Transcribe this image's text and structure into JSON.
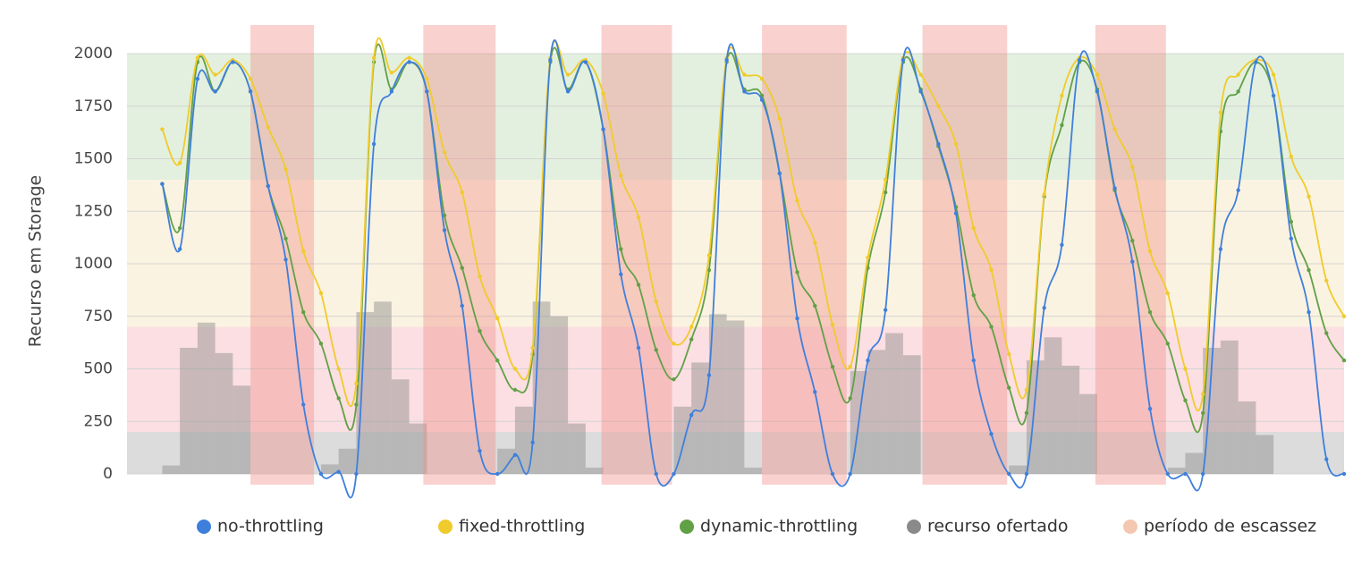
{
  "chart_data": {
    "type": "line",
    "y_label": "Recurso em Storage",
    "xlim": [
      -2,
      67
    ],
    "ylim": [
      0,
      2000
    ],
    "yticks": [
      0,
      250,
      500,
      750,
      1000,
      1250,
      1500,
      1750,
      2000
    ],
    "grid": true,
    "legend": "bottom",
    "bands": [
      {
        "from": 1400,
        "to": 2000,
        "color": "#e3f0df"
      },
      {
        "from": 700,
        "to": 1400,
        "color": "#fbf3e1"
      },
      {
        "from": 200,
        "to": 700,
        "color": "#fbdfe2"
      },
      {
        "from": 0,
        "to": 200,
        "color": "#dcdcdc"
      }
    ],
    "x": [
      0,
      1,
      2,
      3,
      4,
      5,
      6,
      7,
      8,
      9,
      10,
      11,
      12,
      13,
      14,
      15,
      16,
      17,
      18,
      19,
      20,
      21,
      22,
      23,
      24,
      25,
      26,
      27,
      28,
      29,
      30,
      31,
      32,
      33,
      34,
      35,
      36,
      37,
      38,
      39,
      40,
      41,
      42,
      43,
      44,
      45,
      46,
      47,
      48,
      49,
      50,
      51,
      52,
      53,
      54,
      55,
      56,
      57,
      58,
      59,
      60,
      61,
      62,
      63,
      64,
      65,
      66,
      67
    ],
    "series": [
      {
        "name": "no-throttling",
        "color": "#3f7fdc",
        "values": [
          1380,
          1070,
          1880,
          1820,
          1960,
          1820,
          1370,
          1020,
          330,
          0,
          10,
          0,
          1570,
          1820,
          1960,
          1820,
          1160,
          800,
          110,
          0,
          90,
          150,
          1970,
          1820,
          1960,
          1640,
          950,
          600,
          0,
          0,
          280,
          470,
          1970,
          1820,
          1780,
          1430,
          740,
          390,
          0,
          0,
          540,
          780,
          1970,
          1820,
          1570,
          1240,
          540,
          190,
          0,
          0,
          790,
          1090,
          1970,
          1820,
          1360,
          1010,
          310,
          0,
          0,
          0,
          1070,
          1350,
          1960,
          1800,
          1120,
          770,
          70,
          0
        ]
      },
      {
        "name": "fixed-throttling",
        "color": "#f0cb2c",
        "values": [
          1640,
          1480,
          1980,
          1900,
          1970,
          1880,
          1650,
          1450,
          1060,
          860,
          500,
          430,
          1980,
          1910,
          1980,
          1880,
          1530,
          1340,
          940,
          740,
          500,
          600,
          1980,
          1900,
          1970,
          1810,
          1420,
          1220,
          820,
          620,
          700,
          1040,
          1980,
          1900,
          1880,
          1690,
          1300,
          1100,
          710,
          510,
          1030,
          1400,
          1980,
          1900,
          1750,
          1570,
          1170,
          970,
          570,
          400,
          1330,
          1800,
          1980,
          1900,
          1640,
          1460,
          1060,
          860,
          500,
          380,
          1720,
          1900,
          1970,
          1900,
          1510,
          1320,
          920,
          750
        ]
      },
      {
        "name": "dynamic-throttling",
        "color": "#62a047",
        "values": [
          1380,
          1170,
          1960,
          1820,
          1960,
          1820,
          1370,
          1120,
          770,
          620,
          360,
          330,
          1960,
          1830,
          1960,
          1820,
          1230,
          980,
          680,
          540,
          400,
          570,
          1960,
          1830,
          1960,
          1640,
          1070,
          900,
          590,
          450,
          640,
          970,
          1960,
          1830,
          1800,
          1430,
          960,
          800,
          510,
          360,
          980,
          1340,
          1960,
          1830,
          1560,
          1270,
          850,
          700,
          410,
          290,
          1320,
          1660,
          1960,
          1830,
          1350,
          1110,
          770,
          620,
          350,
          290,
          1630,
          1820,
          1960,
          1800,
          1200,
          970,
          670,
          540
        ]
      }
    ],
    "bars": {
      "name": "recurso ofertado",
      "color": "#8a8a8a",
      "values": [
        40,
        600,
        720,
        575,
        420,
        null,
        null,
        null,
        null,
        45,
        120,
        770,
        820,
        450,
        240,
        null,
        null,
        null,
        null,
        120,
        320,
        820,
        750,
        240,
        30,
        null,
        null,
        null,
        null,
        320,
        530,
        760,
        730,
        30,
        null,
        null,
        null,
        null,
        null,
        490,
        590,
        670,
        565,
        null,
        null,
        null,
        null,
        null,
        40,
        540,
        650,
        515,
        380,
        null,
        null,
        null,
        null,
        30,
        100,
        600,
        635,
        345,
        185,
        null,
        null,
        null,
        null,
        null
      ]
    },
    "periods": {
      "name": "período de escassez",
      "color": "#f4c7b0",
      "ranges": [
        [
          5,
          8.6
        ],
        [
          14.8,
          18.9
        ],
        [
          24.9,
          28.9
        ],
        [
          34,
          38.8
        ],
        [
          43.1,
          47.9
        ],
        [
          52.9,
          56.9
        ]
      ]
    }
  }
}
